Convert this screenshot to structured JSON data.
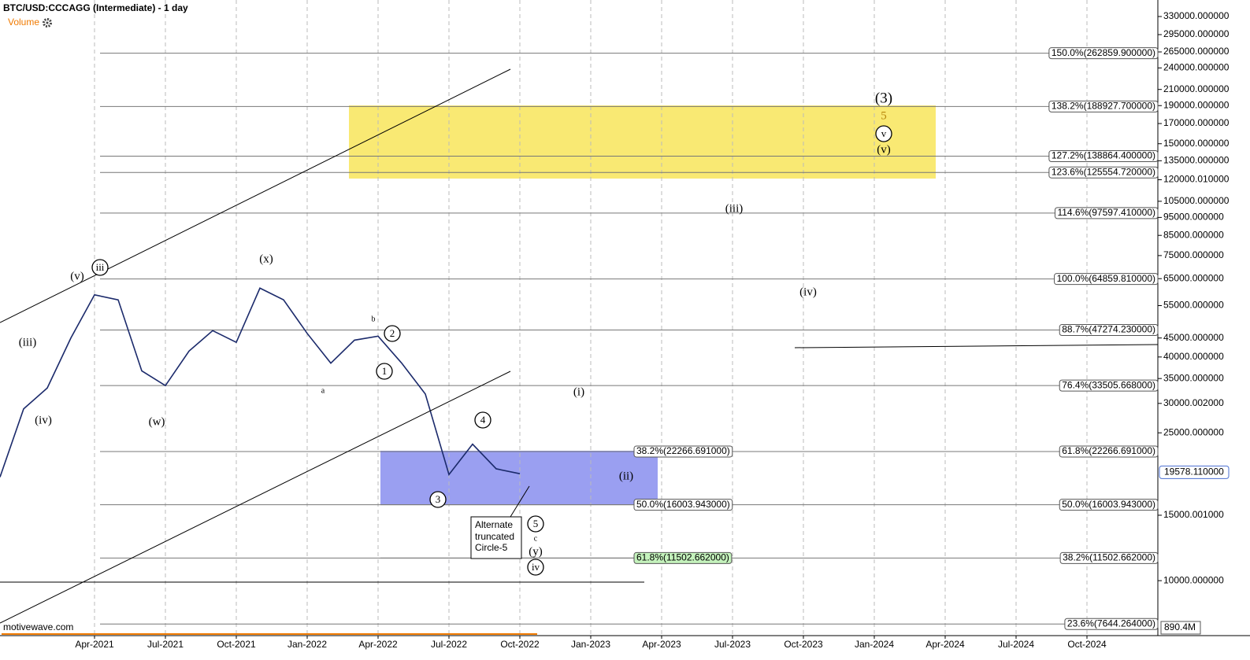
{
  "chart_data": {
    "type": "line",
    "title": "BTC/USD:CCCAGG (Intermediate) - 1 day",
    "indicator": "Volume",
    "watermark": "motivewave.com",
    "volume_axis_label": "890.4M",
    "log_scale": true,
    "grid": true,
    "x": [
      "2020-12",
      "2021-01",
      "2021-02",
      "2021-03",
      "2021-04",
      "2021-05",
      "2021-06",
      "2021-07",
      "2021-08",
      "2021-09",
      "2021-10",
      "2021-11",
      "2021-12",
      "2022-01",
      "2022-02",
      "2022-03",
      "2022-04",
      "2022-05",
      "2022-06",
      "2022-07",
      "2022-08",
      "2022-09",
      "2022-10"
    ],
    "series": [
      {
        "name": "BTC/USD",
        "color": "#1b2a6b",
        "values": [
          19000,
          29000,
          33000,
          45000,
          58800,
          57000,
          36700,
          33500,
          41500,
          47100,
          43800,
          61300,
          57000,
          46300,
          38500,
          44400,
          45500,
          38500,
          31800,
          19300,
          23300,
          20000,
          19400
        ]
      }
    ],
    "last_price": {
      "value": 19578.11,
      "label": "19578.110000"
    },
    "xlim": [
      "2020-12",
      "2025-01"
    ],
    "xticks": [
      {
        "value": "2021-04",
        "label": "Apr-2021"
      },
      {
        "value": "2021-07",
        "label": "Jul-2021"
      },
      {
        "value": "2021-10",
        "label": "Oct-2021"
      },
      {
        "value": "2022-01",
        "label": "Jan-2022"
      },
      {
        "value": "2022-04",
        "label": "Apr-2022"
      },
      {
        "value": "2022-07",
        "label": "Jul-2022"
      },
      {
        "value": "2022-10",
        "label": "Oct-2022"
      },
      {
        "value": "2023-01",
        "label": "Jan-2023"
      },
      {
        "value": "2023-04",
        "label": "Apr-2023"
      },
      {
        "value": "2023-07",
        "label": "Jul-2023"
      },
      {
        "value": "2023-10",
        "label": "Oct-2023"
      },
      {
        "value": "2024-01",
        "label": "Jan-2024"
      },
      {
        "value": "2024-04",
        "label": "Apr-2024"
      },
      {
        "value": "2024-07",
        "label": "Jul-2024"
      },
      {
        "value": "2024-10",
        "label": "Oct-2024"
      }
    ],
    "ylim": [
      7113,
      365600
    ],
    "yticks": [
      {
        "value": 330000,
        "label": "330000.000000"
      },
      {
        "value": 295000,
        "label": "295000.000000"
      },
      {
        "value": 265000,
        "label": "265000.000000"
      },
      {
        "value": 240000,
        "label": "240000.000000"
      },
      {
        "value": 210000,
        "label": "210000.000000"
      },
      {
        "value": 190000,
        "label": "190000.000000"
      },
      {
        "value": 170000,
        "label": "170000.000000"
      },
      {
        "value": 150000,
        "label": "150000.000000"
      },
      {
        "value": 135000,
        "label": "135000.000000"
      },
      {
        "value": 120000.01,
        "label": "120000.010000"
      },
      {
        "value": 105000,
        "label": "105000.000000"
      },
      {
        "value": 95000,
        "label": "95000.000000"
      },
      {
        "value": 85000,
        "label": "85000.000000"
      },
      {
        "value": 75000,
        "label": "75000.000000"
      },
      {
        "value": 65000,
        "label": "65000.000000"
      },
      {
        "value": 55000,
        "label": "55000.000000"
      },
      {
        "value": 45000,
        "label": "45000.000000"
      },
      {
        "value": 40000,
        "label": "40000.000000"
      },
      {
        "value": 35000,
        "label": "35000.000000"
      },
      {
        "value": 30000.002,
        "label": "30000.002000"
      },
      {
        "value": 25000,
        "label": "25000.000000"
      },
      {
        "value": 15000.001,
        "label": "15000.001000"
      },
      {
        "value": 10000,
        "label": "10000.000000"
      }
    ],
    "fib_levels": [
      {
        "value": 262859.9,
        "label": "150.0%(262859.900000)"
      },
      {
        "value": 188927.7,
        "label": "138.2%(188927.700000)"
      },
      {
        "value": 138864.4,
        "label": "127.2%(138864.400000)"
      },
      {
        "value": 125554.72,
        "label": "123.6%(125554.720000)"
      },
      {
        "value": 97597.41,
        "label": "114.6%(97597.410000)"
      },
      {
        "value": 64859.81,
        "label": "100.0%(64859.810000)"
      },
      {
        "value": 47274.23,
        "label": "88.7%(47274.230000)"
      },
      {
        "value": 33505.668,
        "label": "76.4%(33505.668000)"
      },
      {
        "value": 22266.691,
        "label": "61.8%(22266.691000)"
      },
      {
        "value": 16003.943,
        "label": "50.0%(16003.943000)"
      },
      {
        "value": 11502.662,
        "label": "38.2%(11502.662000)"
      },
      {
        "value": 7644.264,
        "label": "23.6%(7644.264000)"
      }
    ],
    "box_levels": [
      {
        "value": 22266.691,
        "label": "38.2%(22266.691000)",
        "color": "#ffffff"
      },
      {
        "value": 16003.943,
        "label": "50.0%(16003.943000)",
        "color": "#ffffff"
      },
      {
        "value": 11502.662,
        "label": "61.8%(11502.662000)",
        "color": "#c4f2bc"
      }
    ],
    "wave_labels": [
      "(iii)",
      "(iv)",
      "(v)",
      "iii",
      "(x)",
      "(w)",
      "b",
      "2",
      "1",
      "a",
      "3",
      "4",
      "(i)",
      "(ii)",
      "(iii)",
      "(iv)",
      "(3)",
      "5",
      "v",
      "(v)",
      "5",
      "c",
      "(y)",
      "iv"
    ],
    "callout": [
      "Alternate",
      "truncated",
      "Circle-5"
    ]
  }
}
